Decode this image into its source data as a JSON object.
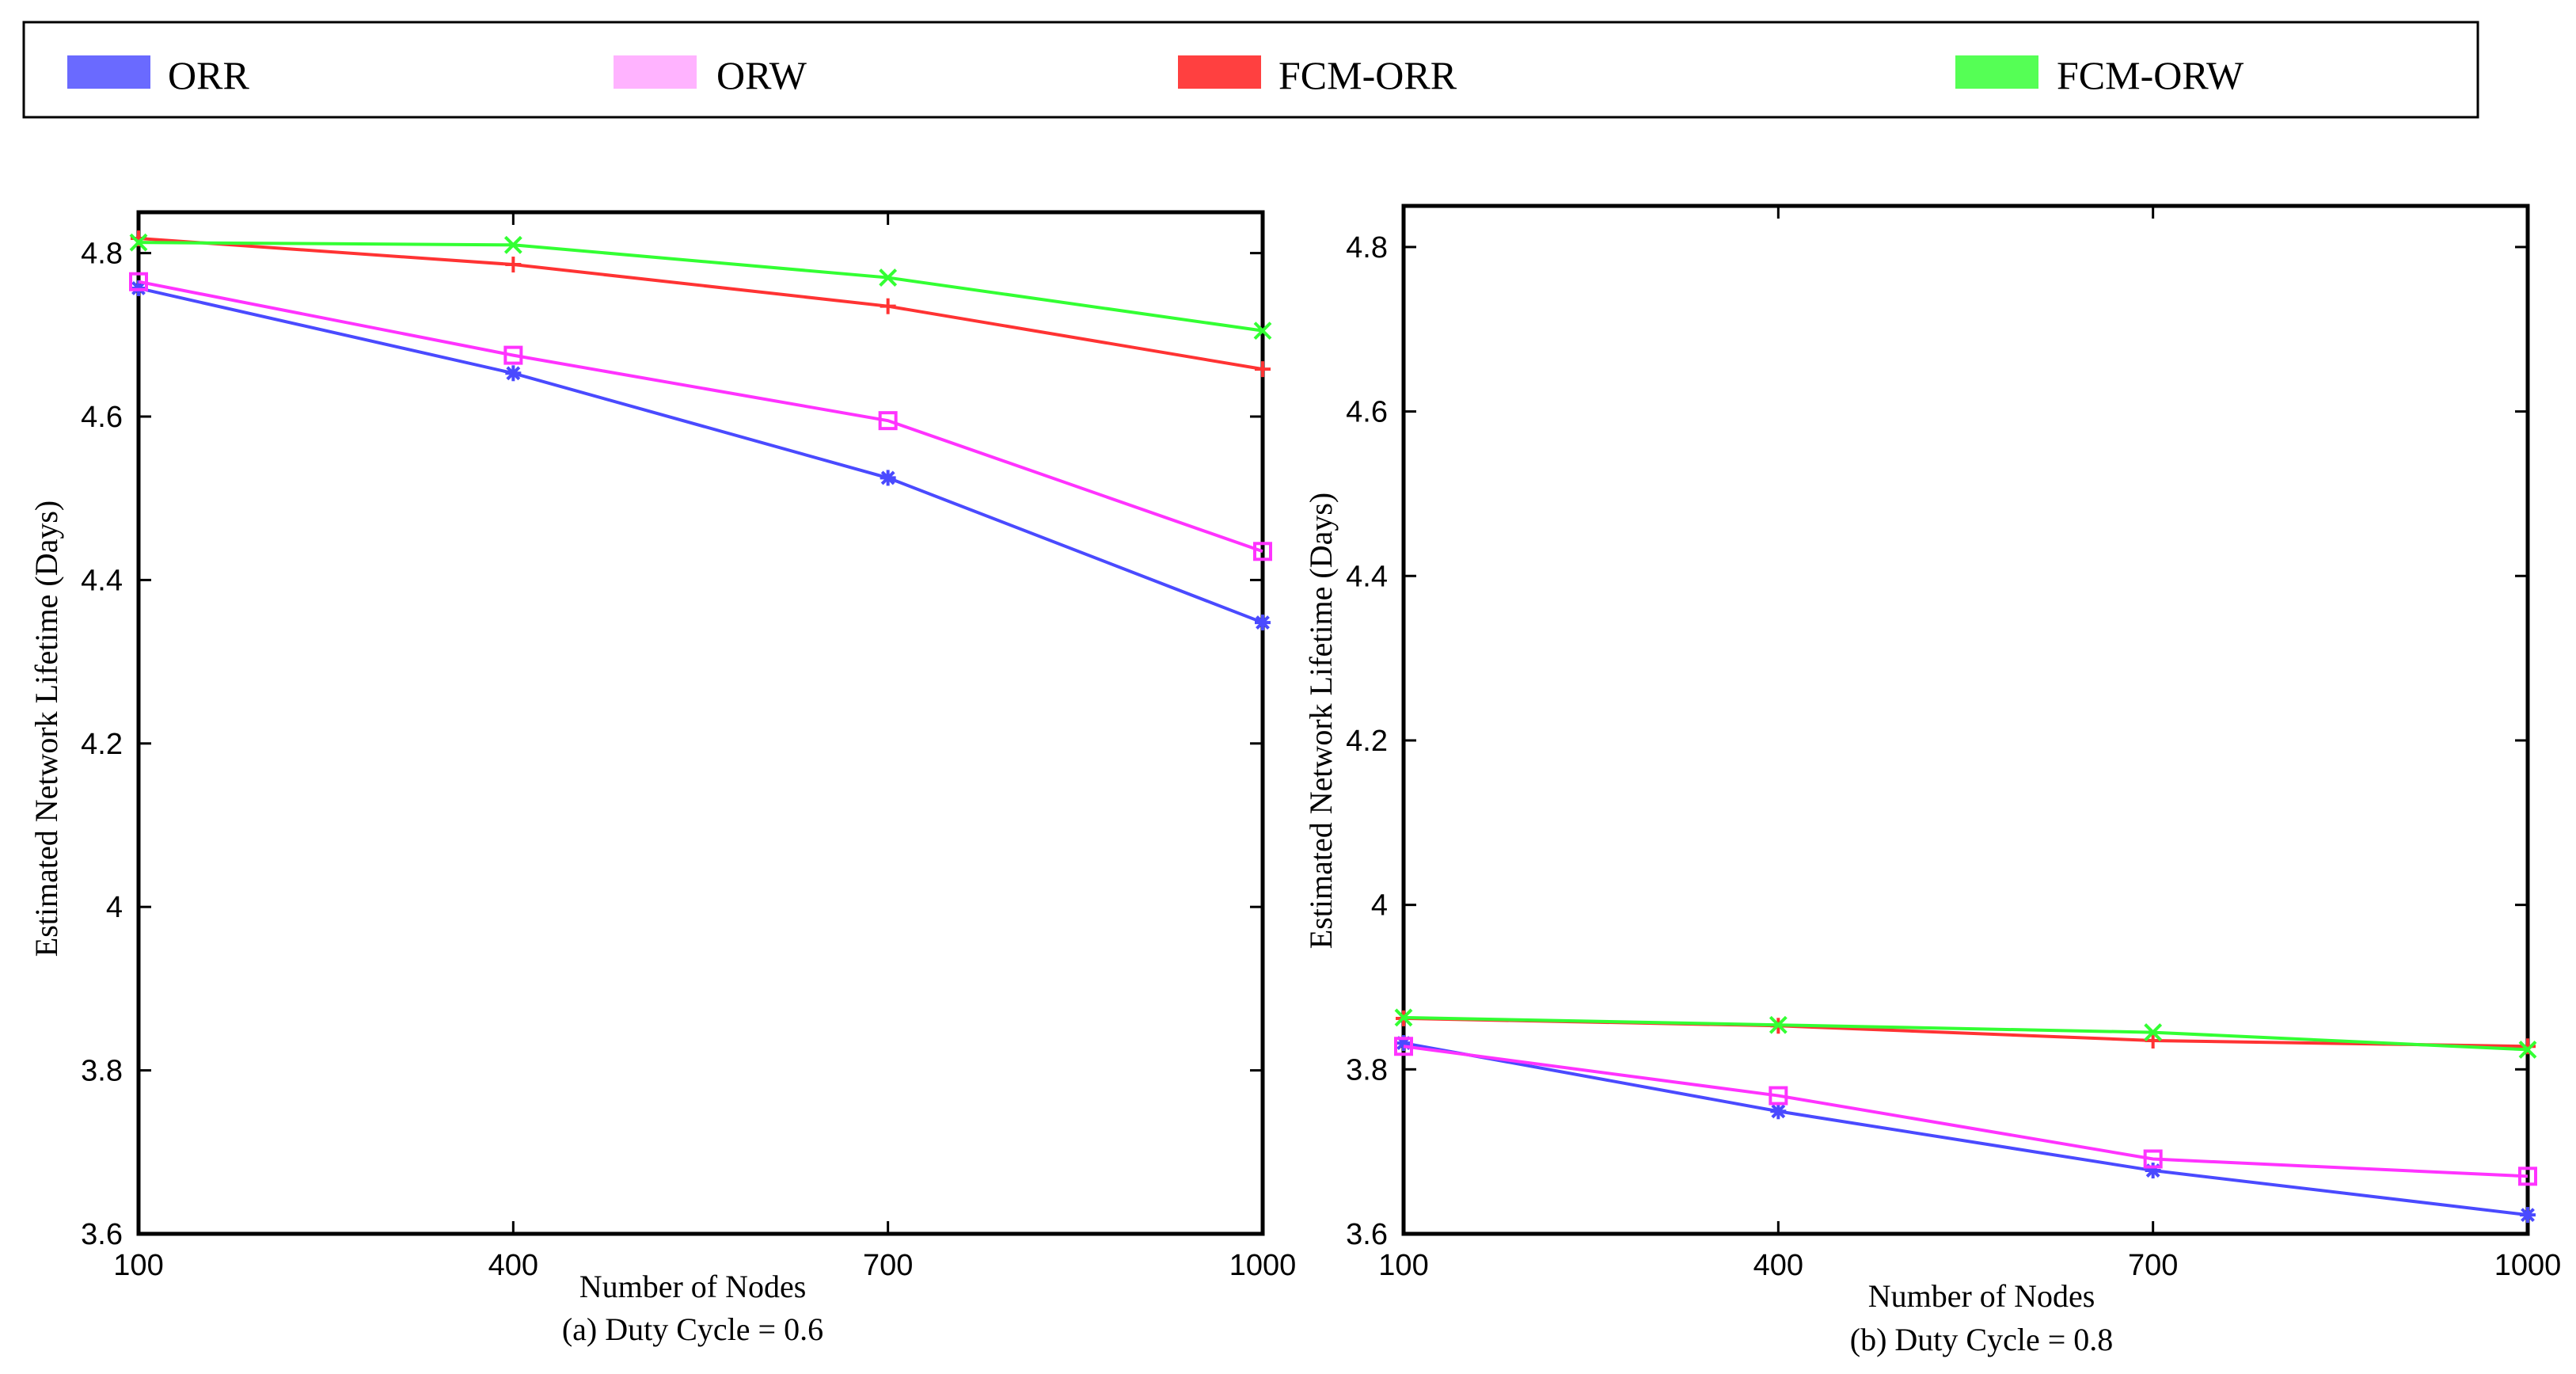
{
  "legend": {
    "entries": [
      {
        "name": "ORR",
        "color": "#4a4aff",
        "swatch": "#6a6aff"
      },
      {
        "name": "ORW",
        "color": "#ff33ff",
        "swatch": "#ffb3ff"
      },
      {
        "name": "FCM-ORR",
        "color": "#ff3333",
        "swatch": "#ff4040"
      },
      {
        "name": "FCM-ORW",
        "color": "#33ff33",
        "swatch": "#55ff55"
      }
    ]
  },
  "chart_data": [
    {
      "type": "line",
      "title": "",
      "caption": "(a) Duty Cycle = 0.6",
      "xlabel": "Number of Nodes",
      "ylabel": "Estimated Network Lifetime (Days)",
      "x": [
        100,
        400,
        700,
        1000
      ],
      "x_ticks": [
        "100",
        "400",
        "700",
        "1000"
      ],
      "ylim": [
        3.6,
        4.85
      ],
      "y_ticks": [
        3.6,
        3.8,
        4,
        4.2,
        4.4,
        4.6,
        4.8
      ],
      "y_tick_labels": [
        "3.6",
        "3.8",
        "4",
        "4.2",
        "4.4",
        "4.6",
        "4.8"
      ],
      "grid": false,
      "series": [
        {
          "name": "ORR",
          "marker": "asterisk",
          "values": [
            4.757,
            4.653,
            4.525,
            4.348
          ]
        },
        {
          "name": "ORW",
          "marker": "square",
          "values": [
            4.765,
            4.675,
            4.595,
            4.435
          ]
        },
        {
          "name": "FCM-ORR",
          "marker": "plus",
          "values": [
            4.818,
            4.786,
            4.735,
            4.658
          ]
        },
        {
          "name": "FCM-ORW",
          "marker": "x",
          "values": [
            4.813,
            4.81,
            4.77,
            4.705
          ]
        }
      ]
    },
    {
      "type": "line",
      "title": "",
      "caption": "(b) Duty Cycle = 0.8",
      "xlabel": "Number of Nodes",
      "ylabel": "Estimated Network Lifetime (Days)",
      "x": [
        100,
        400,
        700,
        1000
      ],
      "x_ticks": [
        "100",
        "400",
        "700",
        "1000"
      ],
      "ylim": [
        3.6,
        4.85
      ],
      "y_ticks": [
        3.6,
        3.8,
        4,
        4.2,
        4.4,
        4.6,
        4.8
      ],
      "y_tick_labels": [
        "3.6",
        "3.8",
        "4",
        "4.2",
        "4.4",
        "4.6",
        "4.8"
      ],
      "grid": false,
      "series": [
        {
          "name": "ORR",
          "marker": "asterisk",
          "values": [
            3.832,
            3.749,
            3.677,
            3.623
          ]
        },
        {
          "name": "ORW",
          "marker": "square",
          "values": [
            3.828,
            3.768,
            3.691,
            3.67
          ]
        },
        {
          "name": "FCM-ORR",
          "marker": "plus",
          "values": [
            3.862,
            3.853,
            3.835,
            3.828
          ]
        },
        {
          "name": "FCM-ORW",
          "marker": "x",
          "values": [
            3.863,
            3.854,
            3.845,
            3.824
          ]
        }
      ]
    }
  ]
}
